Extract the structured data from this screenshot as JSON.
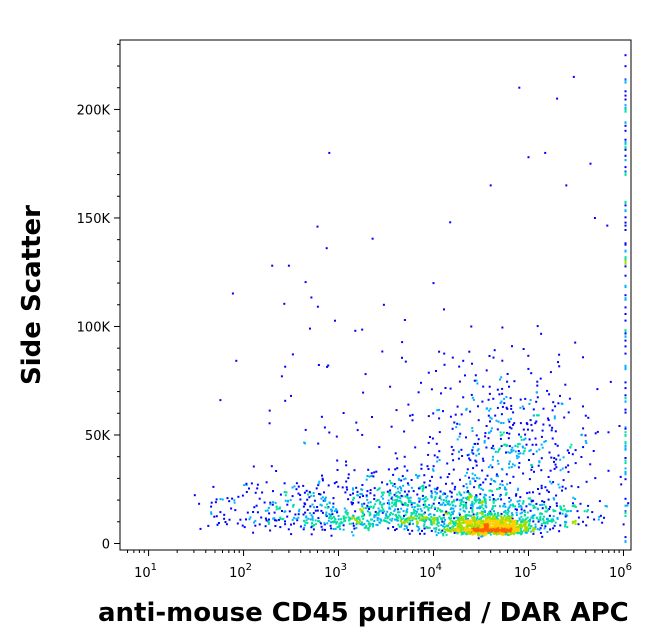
{
  "chart_data": {
    "type": "scatter",
    "title": "",
    "xlabel": "anti-mouse CD45 purified / DAR APC",
    "ylabel": "Side Scatter",
    "x_scale": "log",
    "xlim": [
      5,
      1200000
    ],
    "ylim": [
      -3000,
      232000
    ],
    "x_ticks": [
      {
        "value": 10,
        "base": "10",
        "exp": "1"
      },
      {
        "value": 100,
        "base": "10",
        "exp": "2"
      },
      {
        "value": 1000,
        "base": "10",
        "exp": "3"
      },
      {
        "value": 10000,
        "base": "10",
        "exp": "4"
      },
      {
        "value": 100000,
        "base": "10",
        "exp": "5"
      },
      {
        "value": 1000000,
        "base": "10",
        "exp": "6"
      }
    ],
    "y_ticks": [
      {
        "value": 0,
        "label": "0"
      },
      {
        "value": 50000,
        "label": "50K"
      },
      {
        "value": 100000,
        "label": "100K"
      },
      {
        "value": 150000,
        "label": "150K"
      },
      {
        "value": 200000,
        "label": "200K"
      }
    ],
    "grid": false,
    "legend": "none",
    "density_colors": [
      "#0000ff",
      "#00b0ff",
      "#00e0a0",
      "#a0e000",
      "#ffd000",
      "#ff6000",
      "#e00000"
    ],
    "populations": [
      {
        "x_center": 40000,
        "y_center": 6000,
        "log_spread_x": 0.22,
        "spread_y": 3000,
        "count": 900
      },
      {
        "x_center": 20000,
        "y_center": 12000,
        "log_spread_x": 0.7,
        "spread_y": 9000,
        "count": 900
      },
      {
        "x_center": 2000,
        "y_center": 12000,
        "log_spread_x": 0.9,
        "spread_y": 10000,
        "count": 700
      },
      {
        "x_center": 60000,
        "y_center": 45000,
        "log_spread_x": 0.45,
        "spread_y": 22000,
        "count": 380
      },
      {
        "x_center": 1000,
        "y_center": 60000,
        "log_spread_x": 1.0,
        "spread_y": 40000,
        "count": 60
      }
    ],
    "points": [
      [
        150000,
        180000
      ],
      [
        200000,
        205000
      ],
      [
        100000,
        178000
      ],
      [
        250000,
        165000
      ],
      [
        800,
        180000
      ],
      [
        300000,
        215000
      ],
      [
        500000,
        150000
      ],
      [
        40000,
        165000
      ],
      [
        600,
        146000
      ],
      [
        15000,
        148000
      ],
      [
        300,
        128000
      ],
      [
        200,
        128000
      ],
      [
        80000,
        210000
      ],
      [
        450000,
        175000
      ],
      [
        10000,
        120000
      ],
      [
        3000,
        110000
      ],
      [
        1500,
        98000
      ],
      [
        500,
        99000
      ],
      [
        5000,
        103000
      ],
      [
        25000,
        100000
      ]
    ]
  }
}
